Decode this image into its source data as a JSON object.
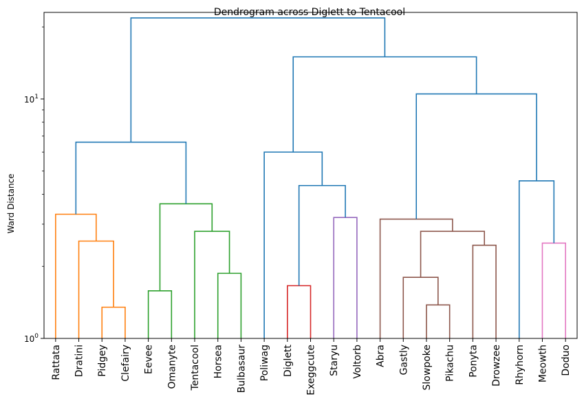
{
  "chart_data": {
    "type": "dendrogram",
    "title": "Dendrogram across Diglett to Tentacool",
    "ylabel": "Ward Distance",
    "xlabel": "",
    "yscale": "log",
    "ylim": [
      1,
      23
    ],
    "yticks": [
      {
        "value": 1,
        "base": "10",
        "exp": "0"
      },
      {
        "value": 10,
        "base": "10",
        "exp": "1"
      }
    ],
    "grid": false,
    "colors": {
      "link": "#1f77b4",
      "orange": "#ff7f0e",
      "green": "#2ca02c",
      "red": "#d62728",
      "purple": "#9467bd",
      "brown": "#8c564b",
      "pink": "#e377c2"
    },
    "leaves": [
      "Rattata",
      "Dratini",
      "Pidgey",
      "Clefairy",
      "Eevee",
      "Omanyte",
      "Tentacool",
      "Horsea",
      "Bulbasaur",
      "Poliwag",
      "Diglett",
      "Exeggcute",
      "Staryu",
      "Voltorb",
      "Abra",
      "Gastly",
      "Slowpoke",
      "Pikachu",
      "Ponyta",
      "Drowzee",
      "Rhyhorn",
      "Meowth",
      "Doduo"
    ],
    "merges": [
      {
        "id": "m1",
        "left": "Pidgey",
        "right": "Clefairy",
        "height": 1.35,
        "color": "orange"
      },
      {
        "id": "m2",
        "left": "Dratini",
        "right": "m1",
        "height": 2.55,
        "color": "orange"
      },
      {
        "id": "m3",
        "left": "Rattata",
        "right": "m2",
        "height": 3.3,
        "color": "orange"
      },
      {
        "id": "m4",
        "left": "Eevee",
        "right": "Omanyte",
        "height": 1.58,
        "color": "green"
      },
      {
        "id": "m5",
        "left": "Horsea",
        "right": "Bulbasaur",
        "height": 1.87,
        "color": "green"
      },
      {
        "id": "m6",
        "left": "Tentacool",
        "right": "m5",
        "height": 2.8,
        "color": "green"
      },
      {
        "id": "m7",
        "left": "m4",
        "right": "m6",
        "height": 3.65,
        "color": "green"
      },
      {
        "id": "m8",
        "left": "m3",
        "right": "m7",
        "height": 6.6,
        "color": "link"
      },
      {
        "id": "m9",
        "left": "Diglett",
        "right": "Exeggcute",
        "height": 1.66,
        "color": "red"
      },
      {
        "id": "m10",
        "left": "Staryu",
        "right": "Voltorb",
        "height": 3.2,
        "color": "purple"
      },
      {
        "id": "m11",
        "left": "m9",
        "right": "m10",
        "height": 4.35,
        "color": "link"
      },
      {
        "id": "m12",
        "left": "Poliwag",
        "right": "m11",
        "height": 6.0,
        "color": "link"
      },
      {
        "id": "m13",
        "left": "Slowpoke",
        "right": "Pikachu",
        "height": 1.38,
        "color": "brown"
      },
      {
        "id": "m14",
        "left": "Gastly",
        "right": "m13",
        "height": 1.8,
        "color": "brown"
      },
      {
        "id": "m15",
        "left": "Ponyta",
        "right": "Drowzee",
        "height": 2.45,
        "color": "brown"
      },
      {
        "id": "m16",
        "left": "m14",
        "right": "m15",
        "height": 2.8,
        "color": "brown"
      },
      {
        "id": "m17",
        "left": "Abra",
        "right": "m16",
        "height": 3.15,
        "color": "brown"
      },
      {
        "id": "m18",
        "left": "Meowth",
        "right": "Doduo",
        "height": 2.5,
        "color": "pink"
      },
      {
        "id": "m19",
        "left": "Rhyhorn",
        "right": "m18",
        "height": 4.55,
        "color": "link"
      },
      {
        "id": "m20",
        "left": "m17",
        "right": "m19",
        "height": 10.5,
        "color": "link"
      },
      {
        "id": "m21",
        "left": "m12",
        "right": "m20",
        "height": 15.0,
        "color": "link"
      },
      {
        "id": "m22",
        "left": "m8",
        "right": "m21",
        "height": 21.8,
        "color": "link"
      }
    ]
  }
}
